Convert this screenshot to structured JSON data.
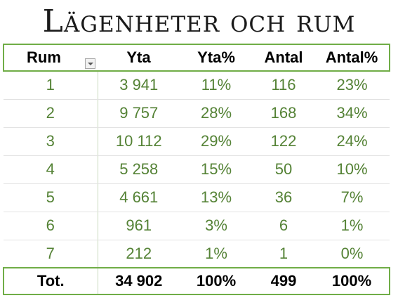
{
  "title": "Lägenheter och rum",
  "table": {
    "headers": [
      "Rum",
      "Yta",
      "Yta%",
      "Antal",
      "Antal%"
    ],
    "rows": [
      [
        "1",
        "3 941",
        "11%",
        "116",
        "23%"
      ],
      [
        "2",
        "9 757",
        "28%",
        "168",
        "34%"
      ],
      [
        "3",
        "10 112",
        "29%",
        "122",
        "24%"
      ],
      [
        "4",
        "5 258",
        "15%",
        "50",
        "10%"
      ],
      [
        "5",
        "4 661",
        "13%",
        "36",
        "7%"
      ],
      [
        "6",
        "961",
        "3%",
        "6",
        "1%"
      ],
      [
        "7",
        "212",
        "1%",
        "1",
        "0%"
      ]
    ],
    "total": [
      "Tot.",
      "34 902",
      "100%",
      "499",
      "100%"
    ]
  },
  "colors": {
    "accent_border": "#70ad47",
    "body_text": "#548235",
    "header_text": "#000000"
  },
  "icons": {
    "filter": "chevron-down-icon"
  }
}
